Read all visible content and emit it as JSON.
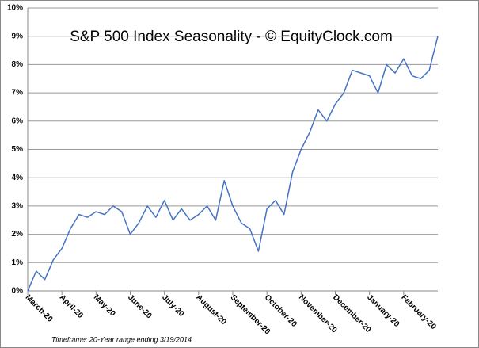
{
  "chart_data": {
    "type": "line",
    "title": "S&P 500 Index Seasonality - © EquityClock.com",
    "footnote": "Timeframe:  20-Year range  ending  3/19/2014",
    "categories": [
      "March-20",
      null,
      null,
      null,
      "April-20",
      null,
      null,
      null,
      "May-20",
      null,
      null,
      null,
      "June-20",
      null,
      null,
      null,
      "July-20",
      null,
      null,
      null,
      "August-20",
      null,
      null,
      null,
      "September-20",
      null,
      null,
      null,
      "October-20",
      null,
      null,
      null,
      "November-20",
      null,
      null,
      null,
      "December-20",
      null,
      null,
      null,
      "January-20",
      null,
      null,
      null,
      "February-20",
      null,
      null,
      null,
      null
    ],
    "series": [
      {
        "name": "S&P 500 Index",
        "color": "#4472c4",
        "values": [
          0.0,
          0.7,
          0.4,
          1.1,
          1.5,
          2.2,
          2.7,
          2.6,
          2.8,
          2.7,
          3.0,
          2.8,
          2.0,
          2.4,
          3.0,
          2.6,
          3.2,
          2.5,
          2.9,
          2.5,
          2.7,
          3.0,
          2.5,
          3.9,
          3.0,
          2.4,
          2.2,
          1.4,
          2.9,
          3.2,
          2.7,
          4.2,
          5.0,
          5.6,
          6.4,
          6.0,
          6.6,
          7.0,
          7.8,
          7.7,
          7.6,
          7.0,
          8.0,
          7.7,
          8.2,
          7.6,
          7.5,
          7.8,
          9.0
        ]
      }
    ],
    "ylim": [
      0,
      10
    ],
    "yticks": [
      {
        "value": 0,
        "label": "0%"
      },
      {
        "value": 1,
        "label": "1%"
      },
      {
        "value": 2,
        "label": "2%"
      },
      {
        "value": 3,
        "label": "3%"
      },
      {
        "value": 4,
        "label": "4%"
      },
      {
        "value": 5,
        "label": "5%"
      },
      {
        "value": 6,
        "label": "6%"
      },
      {
        "value": 7,
        "label": "7%"
      },
      {
        "value": 8,
        "label": "8%"
      },
      {
        "value": 9,
        "label": "9%"
      },
      {
        "value": 10,
        "label": "10%"
      }
    ],
    "grid": true
  }
}
